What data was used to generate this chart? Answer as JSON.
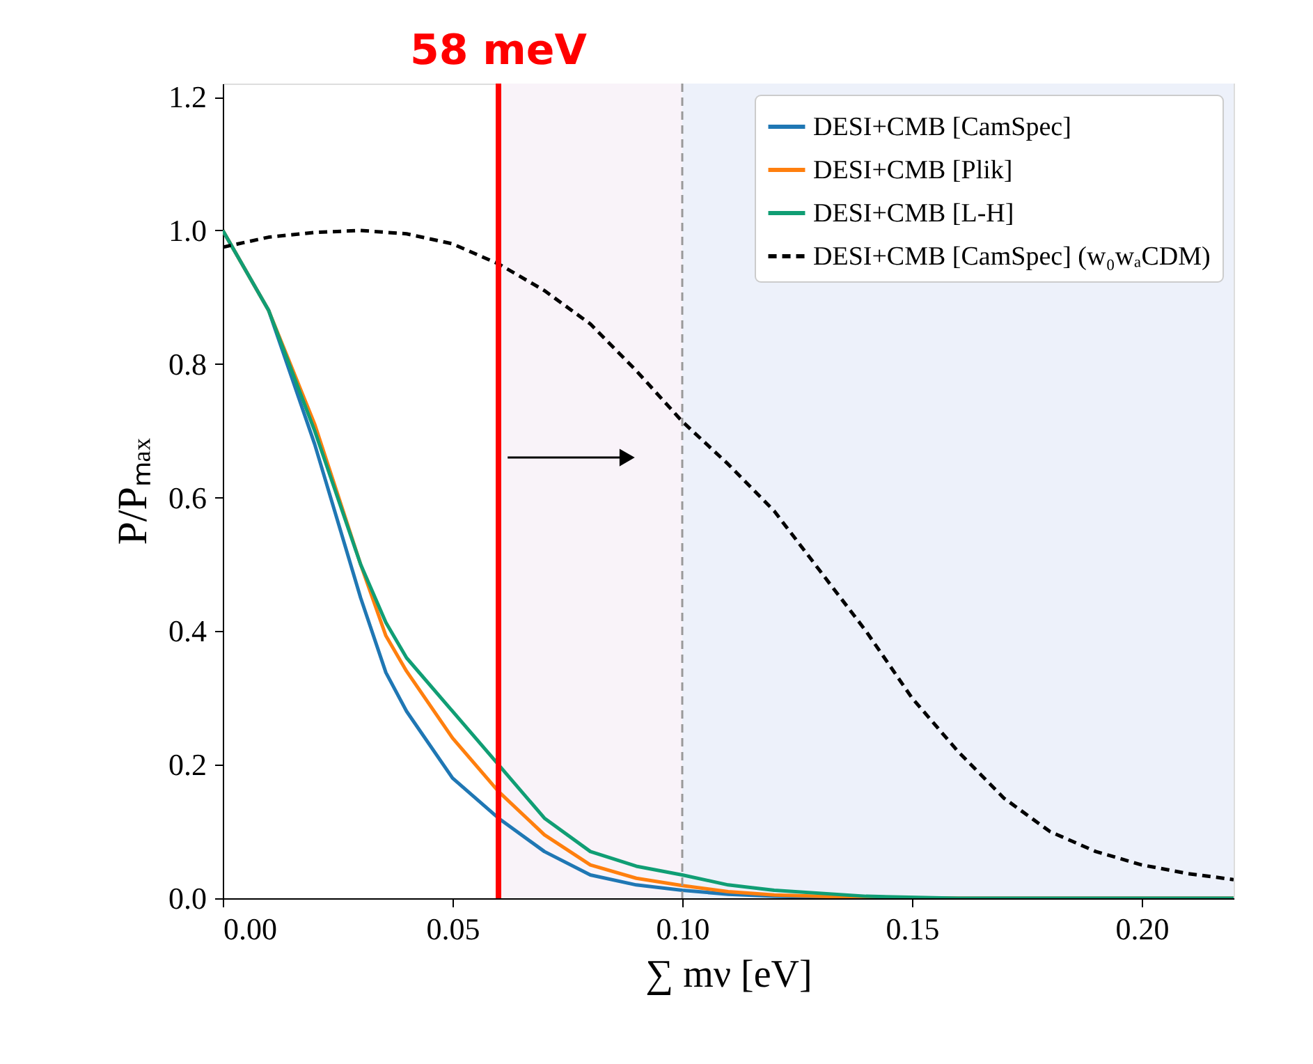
{
  "chart_data": {
    "type": "line",
    "xlabel": "∑ mν [eV]",
    "ylabel": "P/Pₘₐₓ",
    "x": [
      0,
      0.01,
      0.02,
      0.03,
      0.0355,
      0.04,
      0.05,
      0.06,
      0.07,
      0.08,
      0.09,
      0.1,
      0.11,
      0.12,
      0.14,
      0.16,
      0.22
    ],
    "series": [
      {
        "name": "DESI+CMB [CamSpec]",
        "color": "#1f77b4",
        "values": [
          1.0,
          0.88,
          0.68,
          0.45,
          0.338,
          0.28,
          0.18,
          0.12,
          0.07,
          0.035,
          0.02,
          0.012,
          0.006,
          0.003,
          0.001,
          0,
          0
        ]
      },
      {
        "name": "DESI+CMB [Plik]",
        "color": "#ff7f0e",
        "values": [
          1.0,
          0.88,
          0.71,
          0.5,
          0.393,
          0.34,
          0.24,
          0.16,
          0.095,
          0.05,
          0.03,
          0.019,
          0.01,
          0.005,
          0.001,
          0,
          0
        ]
      },
      {
        "name": "DESI+CMB [L-H]",
        "color": "#109e74",
        "values": [
          1.0,
          0.88,
          0.7,
          0.5,
          0.413,
          0.36,
          0.28,
          0.2,
          0.12,
          0.07,
          0.048,
          0.035,
          0.02,
          0.012,
          0.003,
          0,
          0
        ]
      },
      {
        "name": "DESI+CMB [CamSpec] (w₀wₐCDM)",
        "color": "#000000",
        "line_style": "dashed",
        "x": [
          0,
          0.01,
          0.02,
          0.03,
          0.04,
          0.05,
          0.06,
          0.07,
          0.08,
          0.09,
          0.1,
          0.11,
          0.12,
          0.13,
          0.14,
          0.15,
          0.16,
          0.17,
          0.18,
          0.19,
          0.2,
          0.21,
          0.22
        ],
        "values": [
          0.975,
          0.99,
          0.997,
          1.0,
          0.995,
          0.98,
          0.95,
          0.91,
          0.86,
          0.79,
          0.714,
          0.65,
          0.58,
          0.49,
          0.4,
          0.3,
          0.22,
          0.15,
          0.1,
          0.07,
          0.05,
          0.037,
          0.028
        ]
      }
    ],
    "xlim": [
      0,
      0.22
    ],
    "xticks": [
      {
        "value": 0,
        "label": "0.00"
      },
      0.05,
      {
        "value": 0.1,
        "label": "0.10"
      },
      0.15,
      {
        "value": 0.2,
        "label": "0.20"
      }
    ],
    "ylim": [
      0,
      1.22
    ],
    "yticks": [
      {
        "value": 0,
        "label": "0.0"
      },
      0.2,
      0.4,
      0.6,
      0.8,
      {
        "value": 1,
        "label": "1.0"
      },
      1.2
    ],
    "ref_lines": [
      {
        "axis": "x",
        "value": 0.06,
        "label": "58 meV",
        "color": "#ff0000",
        "line_style": "solid"
      },
      {
        "axis": "x",
        "value": 0.1,
        "color": "#999999",
        "line_style": "dashed"
      }
    ],
    "bands": [
      {
        "axis": "x",
        "from": 0.06,
        "to": 0.1,
        "color": "#f9f3f9"
      },
      {
        "axis": "x",
        "from": 0.1,
        "to": 0.22,
        "color": "#edf1fa"
      }
    ],
    "grid": false,
    "legend": "top right"
  }
}
